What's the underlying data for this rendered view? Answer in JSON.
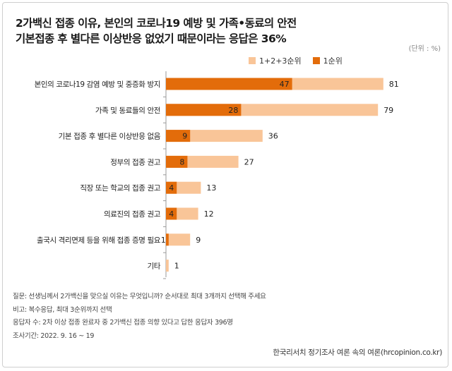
{
  "title_line1": "2가백신 접종 이유, 본인의 코로나19 예방 및 가족•동료의 안전",
  "title_line2": "기본접종 후 별다른 이상반응 없었기 때문이라는 응답은 36%",
  "unit": "(단위 : %)",
  "footer": {
    "question": "질문: 선생님께서 2가백신을 맞으실 이유는 무엇입니까? 순서대로 최대 3개까지 선택해 주세요",
    "note": "비고: 복수응답, 최대 3순위까지 선택",
    "respondents": "응답자 수: 2차 이상 접종 완료자 중 2가백신 접종 의향 있다고 답한 응답자 396명",
    "period": "조사기간: 2022. 9. 16 ~ 19"
  },
  "source": "한국리서치 정기조사 여론 속의 여론(hrcopinion.co.kr)",
  "colors": {
    "first": "#e36c0a",
    "total": "#f9c598",
    "axis": "#999999"
  },
  "chart_data": {
    "type": "bar",
    "orientation": "horizontal",
    "stacked": false,
    "categories": [
      "본인의 코로나19 감염 예방 및 중증화 방지",
      "가족 및 동료들의 안전",
      "기본 접종 후 별다른 이상반응 없음",
      "정부의 접종 권고",
      "직장 또는 학교의 접종 권고",
      "의료진의 접종 권고",
      "출국시 격리면제 등을 위해 접종 증명 필요",
      "기타"
    ],
    "series": [
      {
        "name": "1+2+3순위",
        "values": [
          81,
          79,
          36,
          27,
          13,
          12,
          9,
          1
        ]
      },
      {
        "name": "1순위",
        "values": [
          47,
          28,
          9,
          8,
          4,
          4,
          1,
          null
        ]
      }
    ],
    "xlim": [
      0,
      100
    ],
    "legend": "top-right"
  }
}
